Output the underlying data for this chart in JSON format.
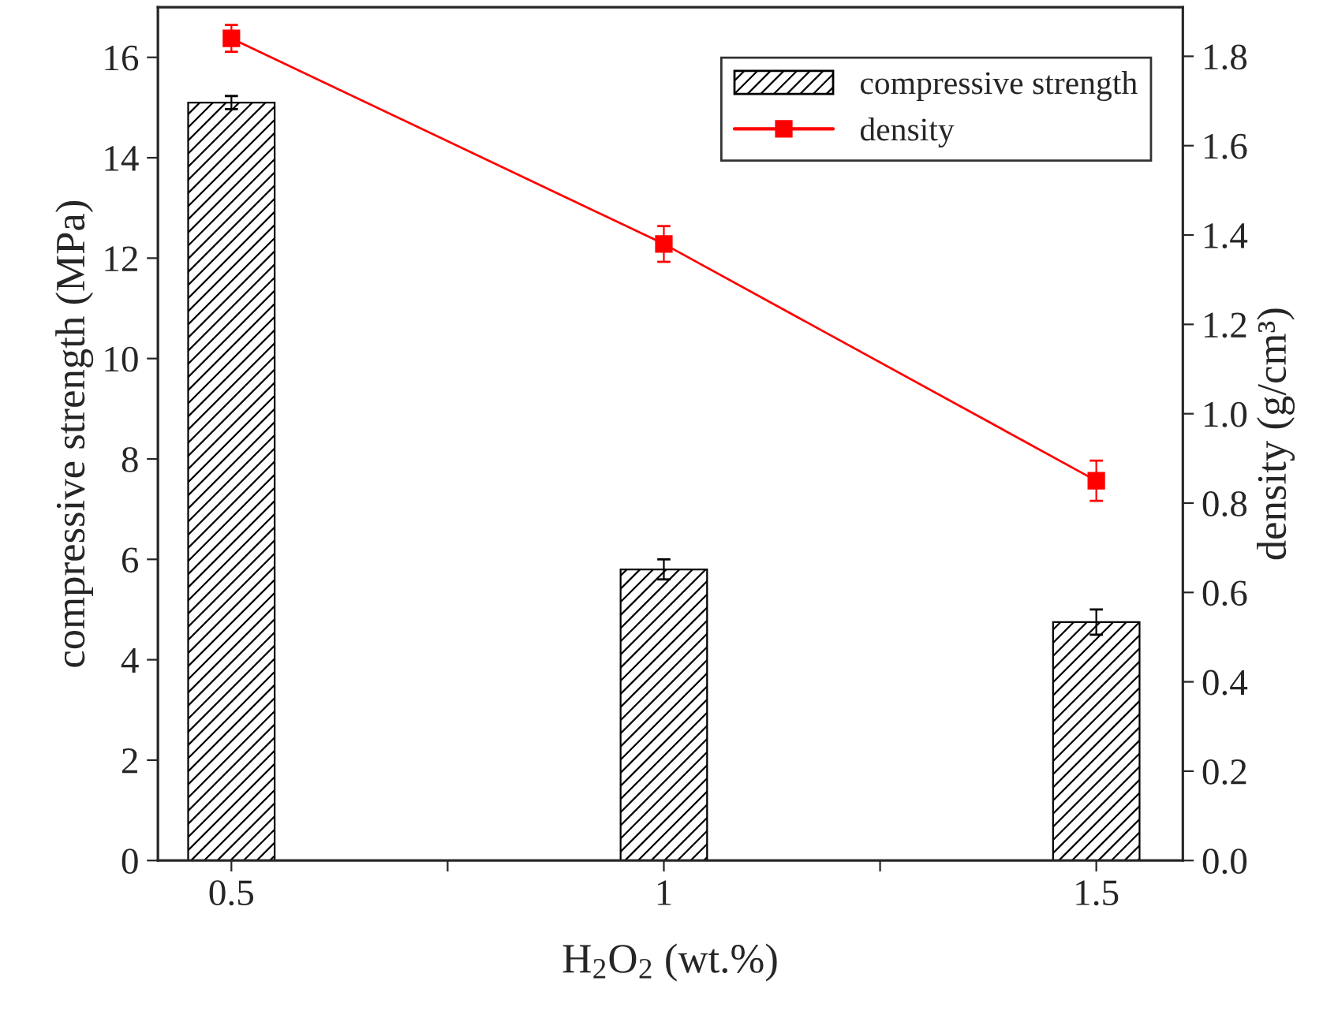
{
  "chart_data": {
    "type": "bar",
    "x": [
      0.5,
      1,
      1.5
    ],
    "xlabel": "H$_{2}$O$_{2}$ (wt.%)",
    "ylabel": "compressive strength (MPa)",
    "y2label": "density (g/cm³)",
    "series": [
      {
        "name": "compressive strength",
        "color": "#000000",
        "values": [
          15.1,
          5.8,
          4.75
        ],
        "errors": [
          0.13,
          0.2,
          0.25
        ]
      },
      {
        "name": "density",
        "type": "line",
        "axis": "y2",
        "color": "#ff0000",
        "values": [
          1.84,
          1.38,
          0.85
        ],
        "errors": [
          0.03,
          0.04,
          0.045
        ],
        "marker": "square",
        "line_style": "solid"
      }
    ],
    "xlim": [
      0.415,
      1.6
    ],
    "xticks": [
      0.5,
      {
        "value": 0.75,
        "label": null
      },
      1,
      {
        "value": 1.25,
        "label": null
      },
      1.5
    ],
    "ylim": [
      0,
      17
    ],
    "yticks": [
      0,
      2,
      4,
      6,
      8,
      10,
      12,
      14,
      16
    ],
    "y2lim": [
      0,
      1.91
    ],
    "y2ticks": [
      {
        "value": 0,
        "label": "0.0"
      },
      0.2,
      0.4,
      0.6,
      0.8,
      {
        "value": 1,
        "label": "1.0"
      },
      1.2,
      1.4,
      1.6,
      1.8
    ],
    "legend": "top right",
    "grid": false
  }
}
